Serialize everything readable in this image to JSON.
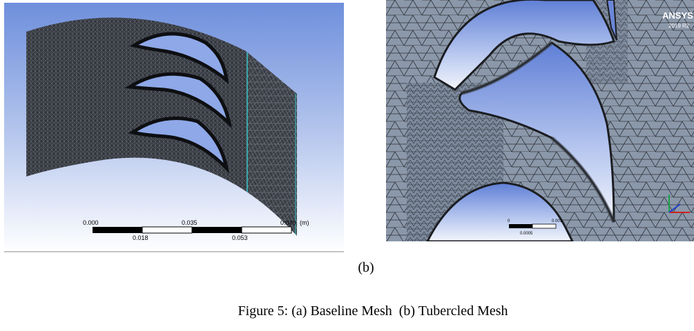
{
  "figure": {
    "panel_a": {
      "scale_bar": {
        "top_labels": [
          "0.000",
          "0.035",
          "0.070"
        ],
        "bottom_labels": [
          "0.018",
          "0.053"
        ],
        "unit": "(m)"
      }
    },
    "panel_b": {
      "logo_text": "ANSYS",
      "logo_version": "2019 R2",
      "scale_bar": {
        "top_labels": [
          "0",
          "0.001"
        ],
        "bottom_labels": [
          "0.0005"
        ]
      }
    },
    "sub_label": "(b)",
    "caption": {
      "prefix": "Figure 5: ",
      "part_a": "(a) Baseline Mesh",
      "separator": "  ",
      "part_b": "(b) Tubercled Mesh"
    }
  },
  "colors": {
    "viewport_top": "#6f8fdc",
    "viewport_bottom": "#ffffff",
    "mesh_dark": "#2a2c30",
    "mesh_light": "#8593a6",
    "blade_edge": "#111111"
  }
}
